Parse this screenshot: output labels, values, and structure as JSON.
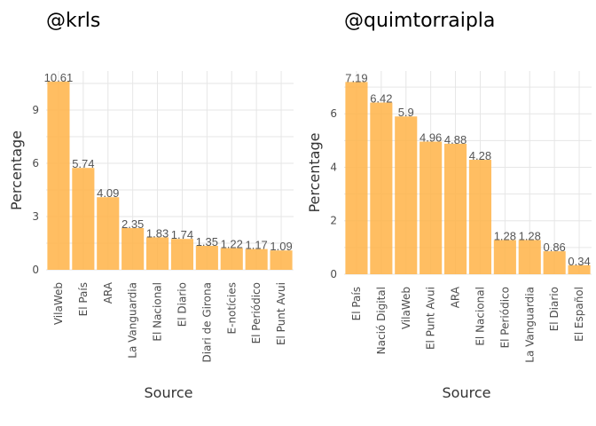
{
  "chart_data": [
    {
      "type": "bar",
      "title": "@krls",
      "xlabel": "Source",
      "ylabel": "Percentage",
      "categories": [
        "VilaWeb",
        "El País",
        "ARA",
        "La Vanguardia",
        "El Nacional",
        "El Diario",
        "Diari de Girona",
        "E-notícies",
        "El Periódico",
        "El Punt Avui"
      ],
      "values": [
        10.61,
        5.74,
        4.09,
        2.35,
        1.83,
        1.74,
        1.35,
        1.22,
        1.17,
        1.09
      ],
      "y_ticks": [
        0,
        3,
        6,
        9
      ],
      "ylim": [
        0,
        11.2
      ],
      "grid": true,
      "bar_color": "#ffb347"
    },
    {
      "type": "bar",
      "title": "@quimtorraipla",
      "xlabel": "Source",
      "ylabel": "Percentage",
      "categories": [
        "El País",
        "Nació Digital",
        "VilaWeb",
        "El Punt Avui",
        "ARA",
        "El Nacional",
        "El Periódico",
        "La Vanguardia",
        "El Diario",
        "El Español"
      ],
      "values": [
        7.19,
        6.42,
        5.9,
        4.96,
        4.88,
        4.28,
        1.28,
        1.28,
        0.86,
        0.34
      ],
      "y_ticks": [
        0,
        2,
        4,
        6
      ],
      "ylim": [
        0,
        7.6
      ],
      "grid": true,
      "bar_color": "#ffb347"
    }
  ]
}
